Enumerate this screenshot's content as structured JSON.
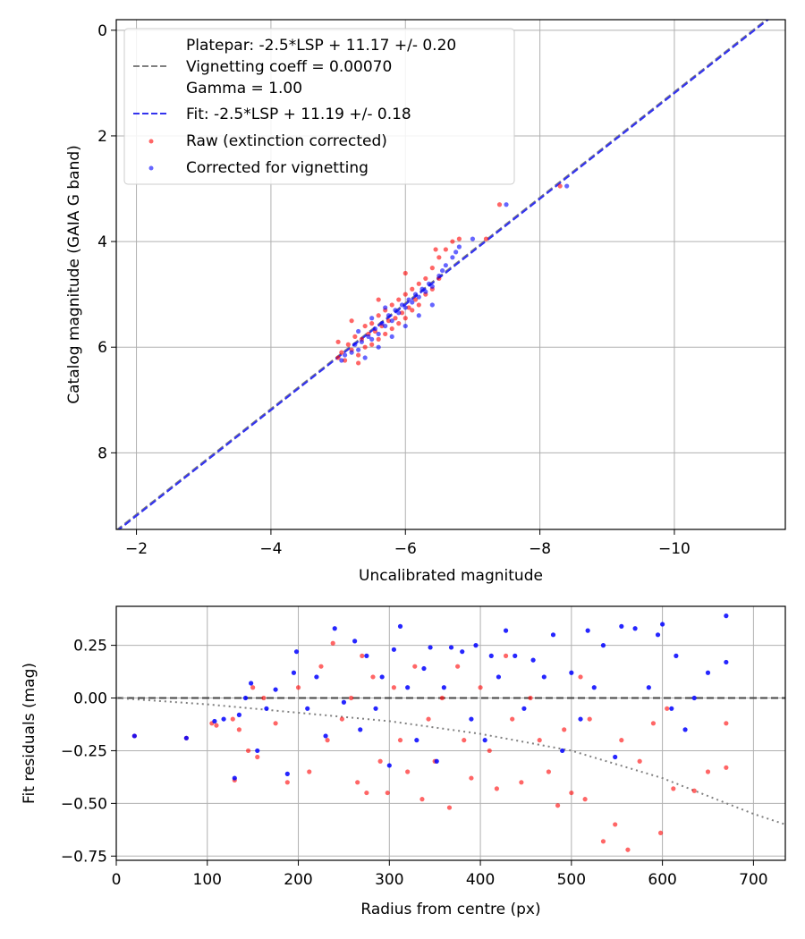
{
  "chart_data": [
    {
      "type": "scatter",
      "title": "",
      "xlabel": "Uncalibrated magnitude",
      "ylabel": "Catalog magnitude (GAIA G band)",
      "xlim": [
        -1.7,
        -11.65
      ],
      "ylim": [
        9.45,
        -0.2
      ],
      "x_inverted": true,
      "y_inverted": true,
      "xticks": [
        -2,
        -4,
        -6,
        -8,
        -10
      ],
      "xtick_labels": [
        "−2",
        "−4",
        "−6",
        "−8",
        "−10"
      ],
      "yticks": [
        0,
        2,
        4,
        6,
        8
      ],
      "ytick_labels": [
        "0",
        "2",
        "4",
        "6",
        "8"
      ],
      "grid": true,
      "legend_position": "upper-left",
      "legend": [
        {
          "label": "Platepar: -2.5*LSP + 11.17 +/- 0.20\nVignetting coeff = 0.00070\nGamma = 1.00",
          "style": "dashed-line",
          "color": "#808080"
        },
        {
          "label": "Fit: -2.5*LSP + 11.19 +/- 0.18",
          "style": "dashed-line",
          "color": "#3333ee"
        },
        {
          "label": "Raw (extinction corrected)",
          "style": "marker",
          "color": "#ff0000"
        },
        {
          "label": "Corrected for vignetting",
          "style": "marker",
          "color": "#0000ff"
        }
      ],
      "lines": [
        {
          "name": "Platepar",
          "color": "#808080",
          "dash": true,
          "slope": 1,
          "intercept": 11.17
        },
        {
          "name": "Fit",
          "color": "#3333ee",
          "dash": true,
          "slope": 1,
          "intercept": 11.19
        }
      ],
      "series": [
        {
          "name": "Raw (extinction corrected)",
          "color": "#ff0000",
          "points": [
            [
              -5.0,
              6.2
            ],
            [
              -5.05,
              6.1
            ],
            [
              -5.1,
              6.25
            ],
            [
              -5.15,
              5.95
            ],
            [
              -5.2,
              6.05
            ],
            [
              -5.25,
              5.8
            ],
            [
              -5.3,
              6.15
            ],
            [
              -5.35,
              5.85
            ],
            [
              -5.4,
              5.6
            ],
            [
              -5.4,
              6.0
            ],
            [
              -5.45,
              5.75
            ],
            [
              -5.5,
              5.55
            ],
            [
              -5.5,
              5.95
            ],
            [
              -5.55,
              5.7
            ],
            [
              -5.6,
              5.4
            ],
            [
              -5.6,
              5.85
            ],
            [
              -5.65,
              5.6
            ],
            [
              -5.7,
              5.3
            ],
            [
              -5.7,
              5.75
            ],
            [
              -5.75,
              5.5
            ],
            [
              -5.8,
              5.2
            ],
            [
              -5.8,
              5.65
            ],
            [
              -5.85,
              5.45
            ],
            [
              -5.9,
              5.1
            ],
            [
              -5.9,
              5.55
            ],
            [
              -5.95,
              5.35
            ],
            [
              -6.0,
              5.0
            ],
            [
              -6.0,
              5.45
            ],
            [
              -6.05,
              5.25
            ],
            [
              -6.1,
              4.9
            ],
            [
              -6.1,
              5.3
            ],
            [
              -6.15,
              5.1
            ],
            [
              -6.2,
              4.8
            ],
            [
              -6.2,
              5.2
            ],
            [
              -6.3,
              4.7
            ],
            [
              -6.3,
              5.0
            ],
            [
              -6.4,
              4.5
            ],
            [
              -6.4,
              4.9
            ],
            [
              -6.5,
              4.3
            ],
            [
              -6.5,
              4.7
            ],
            [
              -6.6,
              4.15
            ],
            [
              -6.7,
              4.0
            ],
            [
              -6.8,
              3.95
            ],
            [
              -7.2,
              3.95
            ],
            [
              -7.4,
              3.3
            ],
            [
              -8.3,
              2.95
            ],
            [
              -5.2,
              5.5
            ],
            [
              -5.6,
              5.1
            ],
            [
              -5.0,
              5.9
            ],
            [
              -6.0,
              4.6
            ],
            [
              -6.45,
              4.15
            ],
            [
              -5.3,
              6.3
            ]
          ]
        },
        {
          "name": "Corrected for vignetting",
          "color": "#0000ff",
          "points": [
            [
              -5.05,
              6.25
            ],
            [
              -5.1,
              6.15
            ],
            [
              -5.2,
              6.1
            ],
            [
              -5.25,
              5.95
            ],
            [
              -5.3,
              6.05
            ],
            [
              -5.35,
              5.9
            ],
            [
              -5.45,
              5.8
            ],
            [
              -5.5,
              5.85
            ],
            [
              -5.55,
              5.65
            ],
            [
              -5.6,
              5.75
            ],
            [
              -5.65,
              5.55
            ],
            [
              -5.7,
              5.6
            ],
            [
              -5.75,
              5.4
            ],
            [
              -5.8,
              5.5
            ],
            [
              -5.85,
              5.3
            ],
            [
              -5.9,
              5.35
            ],
            [
              -5.95,
              5.2
            ],
            [
              -6.0,
              5.25
            ],
            [
              -6.05,
              5.1
            ],
            [
              -6.1,
              5.15
            ],
            [
              -6.15,
              5.0
            ],
            [
              -6.2,
              5.05
            ],
            [
              -6.25,
              4.9
            ],
            [
              -6.3,
              4.95
            ],
            [
              -6.35,
              4.8
            ],
            [
              -6.4,
              4.85
            ],
            [
              -6.5,
              4.65
            ],
            [
              -6.55,
              4.55
            ],
            [
              -6.6,
              4.45
            ],
            [
              -6.7,
              4.3
            ],
            [
              -6.75,
              4.2
            ],
            [
              -6.8,
              4.1
            ],
            [
              -7.0,
              3.95
            ],
            [
              -7.5,
              3.3
            ],
            [
              -8.4,
              2.95
            ],
            [
              -5.4,
              6.2
            ],
            [
              -5.6,
              6.0
            ],
            [
              -5.8,
              5.8
            ],
            [
              -6.0,
              5.6
            ],
            [
              -6.2,
              5.4
            ],
            [
              -6.4,
              5.2
            ],
            [
              -5.3,
              5.7
            ],
            [
              -5.5,
              5.45
            ],
            [
              -5.7,
              5.25
            ]
          ]
        }
      ]
    },
    {
      "type": "scatter",
      "title": "",
      "xlabel": "Radius from centre (px)",
      "ylabel": "Fit residuals (mag)",
      "xlim": [
        0,
        735
      ],
      "ylim": [
        -0.77,
        0.435
      ],
      "xticks": [
        0,
        100,
        200,
        300,
        400,
        500,
        600,
        700
      ],
      "xtick_labels": [
        "0",
        "100",
        "200",
        "300",
        "400",
        "500",
        "600",
        "700"
      ],
      "yticks": [
        -0.75,
        -0.5,
        -0.25,
        0.0,
        0.25
      ],
      "ytick_labels": [
        "−0.75",
        "−0.50",
        "−0.25",
        "0.00",
        "0.25"
      ],
      "grid": true,
      "reference_line": {
        "y": 0.0,
        "color": "#444444",
        "dash": true
      },
      "model_curve": {
        "color": "#808080",
        "style": "dotted",
        "x": [
          0,
          100,
          200,
          300,
          400,
          500,
          600,
          700,
          735
        ],
        "y": [
          0.0,
          -0.03,
          -0.07,
          -0.11,
          -0.17,
          -0.25,
          -0.38,
          -0.55,
          -0.6
        ]
      },
      "series": [
        {
          "name": "Raw (extinction corrected)",
          "color": "#ff0000",
          "points": [
            [
              20,
              -0.18
            ],
            [
              77,
              -0.19
            ],
            [
              105,
              -0.12
            ],
            [
              110,
              -0.13
            ],
            [
              128,
              -0.1
            ],
            [
              130,
              -0.39
            ],
            [
              135,
              -0.15
            ],
            [
              145,
              -0.25
            ],
            [
              150,
              0.05
            ],
            [
              155,
              -0.28
            ],
            [
              162,
              0.0
            ],
            [
              175,
              -0.12
            ],
            [
              188,
              -0.4
            ],
            [
              200,
              0.05
            ],
            [
              212,
              -0.35
            ],
            [
              225,
              0.15
            ],
            [
              232,
              -0.2
            ],
            [
              238,
              0.26
            ],
            [
              248,
              -0.1
            ],
            [
              258,
              0.0
            ],
            [
              265,
              -0.4
            ],
            [
              270,
              0.2
            ],
            [
              275,
              -0.45
            ],
            [
              282,
              0.1
            ],
            [
              290,
              -0.3
            ],
            [
              298,
              -0.45
            ],
            [
              305,
              0.05
            ],
            [
              312,
              -0.2
            ],
            [
              320,
              -0.35
            ],
            [
              328,
              0.15
            ],
            [
              336,
              -0.48
            ],
            [
              343,
              -0.1
            ],
            [
              350,
              -0.3
            ],
            [
              358,
              0.0
            ],
            [
              366,
              -0.52
            ],
            [
              375,
              0.15
            ],
            [
              382,
              -0.2
            ],
            [
              390,
              -0.38
            ],
            [
              400,
              0.05
            ],
            [
              410,
              -0.25
            ],
            [
              418,
              -0.43
            ],
            [
              428,
              0.2
            ],
            [
              435,
              -0.1
            ],
            [
              445,
              -0.4
            ],
            [
              455,
              0.0
            ],
            [
              465,
              -0.2
            ],
            [
              475,
              -0.35
            ],
            [
              485,
              -0.51
            ],
            [
              492,
              -0.15
            ],
            [
              500,
              -0.45
            ],
            [
              510,
              0.1
            ],
            [
              515,
              -0.48
            ],
            [
              520,
              -0.1
            ],
            [
              535,
              -0.68
            ],
            [
              548,
              -0.6
            ],
            [
              555,
              -0.2
            ],
            [
              562,
              -0.72
            ],
            [
              575,
              -0.3
            ],
            [
              590,
              -0.12
            ],
            [
              598,
              -0.64
            ],
            [
              605,
              -0.05
            ],
            [
              612,
              -0.43
            ],
            [
              635,
              -0.44
            ],
            [
              650,
              -0.35
            ],
            [
              670,
              -0.33
            ],
            [
              670,
              -0.12
            ]
          ]
        },
        {
          "name": "Corrected for vignetting",
          "color": "#0000ff",
          "points": [
            [
              20,
              -0.18
            ],
            [
              77,
              -0.19
            ],
            [
              108,
              -0.11
            ],
            [
              118,
              -0.1
            ],
            [
              130,
              -0.38
            ],
            [
              135,
              -0.08
            ],
            [
              142,
              0.0
            ],
            [
              148,
              0.07
            ],
            [
              155,
              -0.25
            ],
            [
              165,
              -0.05
            ],
            [
              175,
              0.04
            ],
            [
              188,
              -0.36
            ],
            [
              195,
              0.12
            ],
            [
              198,
              0.22
            ],
            [
              210,
              -0.05
            ],
            [
              220,
              0.1
            ],
            [
              230,
              -0.18
            ],
            [
              240,
              0.33
            ],
            [
              250,
              -0.02
            ],
            [
              262,
              0.27
            ],
            [
              268,
              -0.15
            ],
            [
              275,
              0.2
            ],
            [
              285,
              -0.05
            ],
            [
              292,
              0.1
            ],
            [
              300,
              -0.32
            ],
            [
              305,
              0.23
            ],
            [
              312,
              0.34
            ],
            [
              320,
              0.05
            ],
            [
              330,
              -0.2
            ],
            [
              338,
              0.14
            ],
            [
              345,
              0.24
            ],
            [
              352,
              -0.3
            ],
            [
              360,
              0.05
            ],
            [
              368,
              0.24
            ],
            [
              380,
              0.22
            ],
            [
              390,
              -0.1
            ],
            [
              395,
              0.25
            ],
            [
              405,
              -0.2
            ],
            [
              412,
              0.2
            ],
            [
              420,
              0.1
            ],
            [
              428,
              0.32
            ],
            [
              438,
              0.2
            ],
            [
              448,
              -0.05
            ],
            [
              458,
              0.18
            ],
            [
              470,
              0.1
            ],
            [
              480,
              0.3
            ],
            [
              490,
              -0.25
            ],
            [
              500,
              0.12
            ],
            [
              510,
              -0.1
            ],
            [
              518,
              0.32
            ],
            [
              525,
              0.05
            ],
            [
              535,
              0.25
            ],
            [
              548,
              -0.28
            ],
            [
              555,
              0.34
            ],
            [
              570,
              0.33
            ],
            [
              585,
              0.05
            ],
            [
              595,
              0.3
            ],
            [
              600,
              0.35
            ],
            [
              610,
              -0.05
            ],
            [
              615,
              0.2
            ],
            [
              625,
              -0.15
            ],
            [
              635,
              0.0
            ],
            [
              650,
              0.12
            ],
            [
              670,
              0.39
            ],
            [
              670,
              0.17
            ]
          ]
        }
      ]
    }
  ]
}
